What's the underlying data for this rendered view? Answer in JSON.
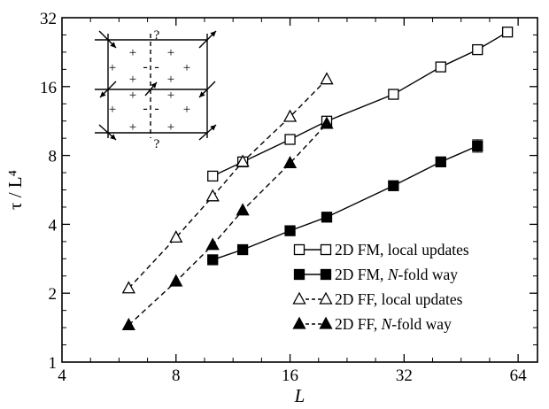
{
  "chart_data": {
    "type": "scatter",
    "x_scale": "log2",
    "y_scale": "log2",
    "xlabel": "L",
    "ylabel": "τ / L⁴",
    "xlim": [
      4,
      72
    ],
    "ylim": [
      1,
      32
    ],
    "x_ticks": [
      4,
      8,
      16,
      32,
      64
    ],
    "y_ticks": [
      1,
      2,
      4,
      8,
      16,
      32
    ],
    "legend_position": "bottom-right",
    "series": [
      {
        "name": "2D FM, local updates",
        "marker": "square-open",
        "line": "solid",
        "x": [
          10,
          12,
          16,
          20,
          30,
          40,
          50,
          60
        ],
        "y": [
          6.5,
          7.5,
          9.4,
          11.3,
          14.8,
          19.5,
          23.2,
          27.7
        ]
      },
      {
        "name": "2D FM, N-fold way",
        "marker": "square-filled",
        "line": "solid",
        "x": [
          10,
          12,
          16,
          20,
          30,
          40,
          50
        ],
        "y": [
          2.8,
          3.1,
          3.75,
          4.3,
          5.9,
          7.5,
          8.8
        ]
      },
      {
        "name": "2D FF, local updates",
        "marker": "triangle-open",
        "line": "dashed",
        "x": [
          6,
          8,
          10,
          12,
          16,
          20
        ],
        "y": [
          2.1,
          3.5,
          5.3,
          7.5,
          11.8,
          17.2
        ]
      },
      {
        "name": "2D FF, N-fold way",
        "marker": "triangle-filled",
        "line": "dashed",
        "x": [
          6,
          8,
          10,
          12,
          16,
          20
        ],
        "y": [
          1.45,
          2.25,
          3.25,
          4.6,
          7.4,
          11.0
        ]
      }
    ]
  },
  "inset": {
    "question_mark": "?",
    "plus_sign": "+",
    "minus_sign": "-"
  }
}
